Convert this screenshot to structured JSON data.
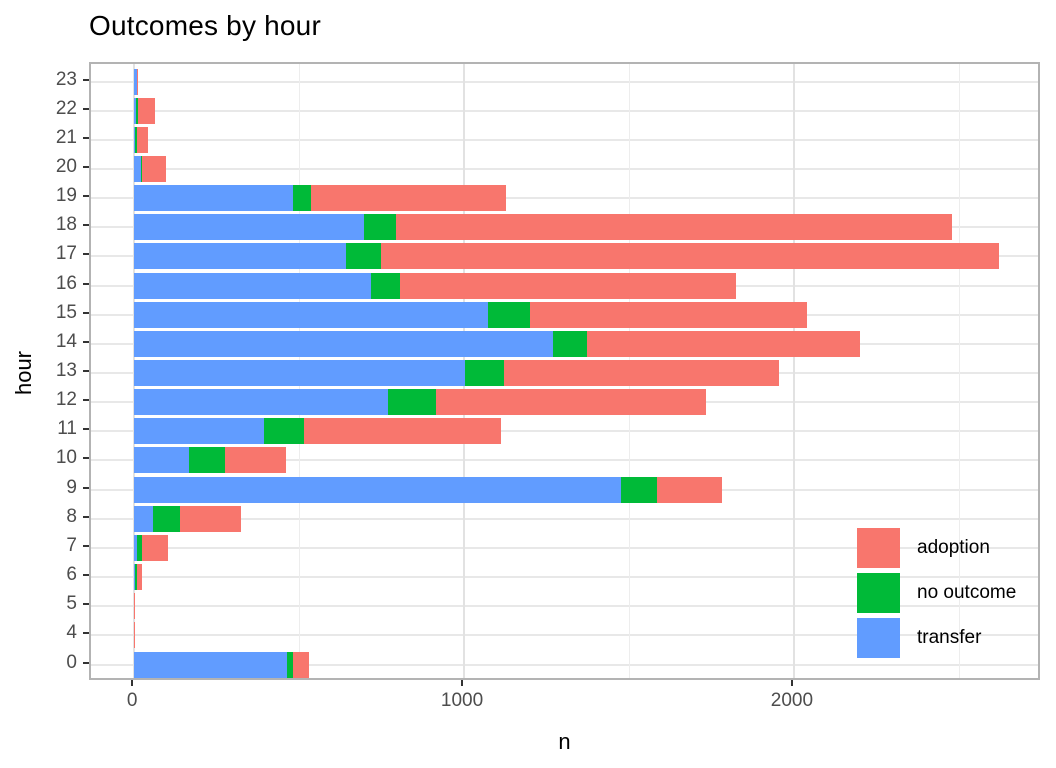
{
  "chart_data": {
    "type": "bar",
    "orientation": "horizontal",
    "stacked": true,
    "title": "Outcomes by hour",
    "xlabel": "n",
    "ylabel": "hour",
    "categories": [
      "23",
      "22",
      "21",
      "20",
      "19",
      "18",
      "17",
      "16",
      "15",
      "14",
      "13",
      "12",
      "11",
      "10",
      "9",
      "8",
      "7",
      "6",
      "5",
      "4",
      "0"
    ],
    "series": [
      {
        "name": "transfer",
        "color": "#619CFF",
        "values": [
          7,
          6,
          2,
          20,
          481,
          698,
          641,
          717,
          1074,
          1270,
          1004,
          770,
          393,
          165,
          1476,
          58,
          7,
          1,
          0,
          0,
          462
        ]
      },
      {
        "name": "no outcome",
        "color": "#00BA38",
        "values": [
          1,
          4,
          6,
          3,
          56,
          95,
          108,
          88,
          126,
          102,
          118,
          144,
          122,
          111,
          108,
          81,
          16,
          6,
          0,
          0,
          19
        ]
      },
      {
        "name": "adoption",
        "color": "#F8766D",
        "values": [
          5,
          54,
          34,
          74,
          591,
          1685,
          1872,
          1018,
          840,
          828,
          834,
          818,
          597,
          185,
          198,
          186,
          80,
          18,
          3,
          3,
          49
        ]
      }
    ],
    "legend": {
      "position": "inside-bottom-right",
      "entries": [
        {
          "label": "adoption",
          "color": "#F8766D"
        },
        {
          "label": "no outcome",
          "color": "#00BA38"
        },
        {
          "label": "transfer",
          "color": "#619CFF"
        }
      ]
    },
    "x_axis": {
      "ticks": [
        "0",
        "1000",
        "2000"
      ],
      "tick_values": [
        0,
        1000,
        2000
      ],
      "minor_tick_values": [
        500,
        1500,
        2500
      ],
      "range": [
        -131,
        2752
      ]
    },
    "grid": {
      "show": true,
      "major_color": "#e2e2e2",
      "minor_color": "#ededed"
    },
    "colors": {
      "panel_border": "#b3b3b3",
      "tick": "#333333",
      "tick_label": "#4d4d4d",
      "text": "#000000"
    }
  }
}
